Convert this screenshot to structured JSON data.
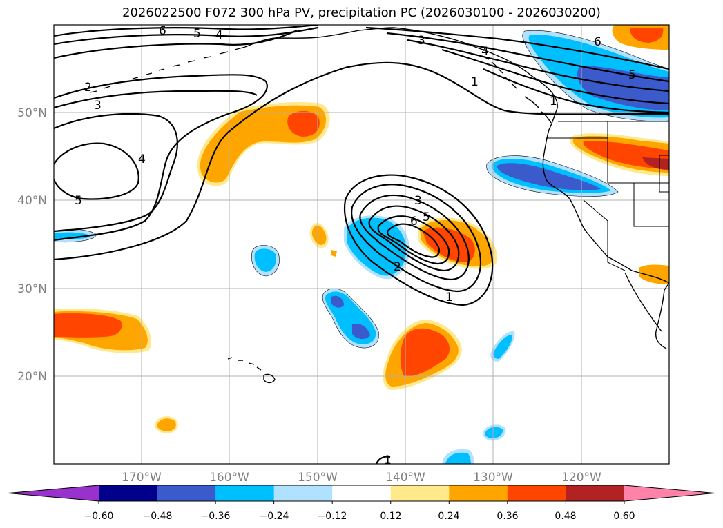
{
  "title": "2026022500 F072 300 hPa PV, precipitation PC (2026030100 - 2026030200)",
  "axes": {
    "lat_labels": [
      "50°N",
      "40°N",
      "30°N",
      "20°N"
    ],
    "lon_labels": [
      "170°W",
      "160°W",
      "150°W",
      "140°W",
      "130°W",
      "120°W"
    ]
  },
  "contour_labels": [
    "6",
    "5",
    "4",
    "3",
    "2",
    "3",
    "4",
    "5",
    "4",
    "1",
    "3",
    "6",
    "5",
    "2",
    "1",
    "1",
    "6",
    "5",
    "1"
  ],
  "colorbar": {
    "tick_labels": [
      "−0.60",
      "−0.48",
      "−0.36",
      "−0.24",
      "−0.12",
      "0.12",
      "0.24",
      "0.36",
      "0.48",
      "0.60"
    ],
    "colors": [
      "#9932cc",
      "#00008b",
      "#3b5bcd",
      "#00bfff",
      "#b0e2ff",
      "#ffffff",
      "#ffe98a",
      "#ffa500",
      "#ff4500",
      "#b22222",
      "#ff83a8"
    ]
  },
  "colors": {
    "neg_strong": "#3b5bcd",
    "neg_mid": "#00bfff",
    "neg_light": "#b0e2ff",
    "pos_light": "#ffe98a",
    "pos_mid": "#ffa500",
    "pos_strong": "#ff4500",
    "pos_dark": "#b22222"
  }
}
